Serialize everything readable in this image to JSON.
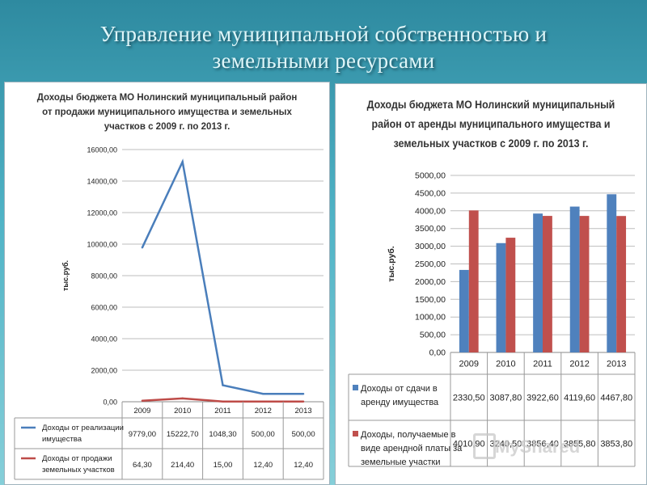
{
  "slide": {
    "title_lines": [
      "Управление муниципальной собственностью и",
      "земельными ресурсами"
    ],
    "watermark": "MyShared"
  },
  "chart_data": [
    {
      "type": "line",
      "title_lines": [
        "Доходы бюджета МО Нолинский муниципальный район",
        "от продажи муниципального имущества и земельных",
        "участков с 2009 г. по 2013 г."
      ],
      "ylabel": "тыс.руб.",
      "categories": [
        "2009",
        "2010",
        "2011",
        "2012",
        "2013"
      ],
      "ylim": [
        0,
        16000
      ],
      "yticks": [
        "0,00",
        "2000,00",
        "4000,00",
        "6000,00",
        "8000,00",
        "10000,00",
        "12000,00",
        "14000,00",
        "16000,00"
      ],
      "grid": true,
      "legend_placement": "bottom data table",
      "series": [
        {
          "name": "Доходы от реализации имущества",
          "name_lines": [
            "Доходы от реализации",
            "имущества"
          ],
          "color": "#4a7ebb",
          "values": [
            9779.0,
            15222.7,
            1048.3,
            500.0,
            500.0
          ],
          "labels": [
            "9779,00",
            "15222,70",
            "1048,30",
            "500,00",
            "500,00"
          ]
        },
        {
          "name": "Доходы от продажи земельных участков",
          "name_lines": [
            "Доходы от продажи",
            "земельных участков"
          ],
          "color": "#be4b48",
          "values": [
            64.3,
            214.4,
            15.0,
            12.4,
            12.4
          ],
          "labels": [
            "64,30",
            "214,40",
            "15,00",
            "12,40",
            "12,40"
          ]
        }
      ]
    },
    {
      "type": "bar",
      "title_lines": [
        "Доходы бюджета МО Нолинский муниципальный",
        "район от аренды муниципального имущества и",
        "земельных участков с 2009 г. по 2013 г."
      ],
      "ylabel": "тыс.руб.",
      "categories": [
        "2009",
        "2010",
        "2011",
        "2012",
        "2013"
      ],
      "ylim": [
        0,
        5000
      ],
      "yticks": [
        "0,00",
        "500,00",
        "1000,00",
        "1500,00",
        "2000,00",
        "2500,00",
        "3000,00",
        "3500,00",
        "4000,00",
        "4500,00",
        "5000,00"
      ],
      "grid": true,
      "legend_placement": "bottom data table",
      "series": [
        {
          "name": "Доходы от сдачи в аренду имущества",
          "name_lines": [
            "Доходы от сдачи в",
            "аренду имущества"
          ],
          "color": "#4f81bd",
          "values": [
            2330.5,
            3087.8,
            3922.6,
            4119.6,
            4467.8
          ],
          "labels": [
            "2330,50",
            "3087,80",
            "3922,60",
            "4119,60",
            "4467,80"
          ]
        },
        {
          "name": "Доходы, получаемые в виде арендной платы за земельные участки",
          "name_lines": [
            "Доходы, получаемые в",
            "виде арендной платы за",
            "земельные участки"
          ],
          "color": "#c0504d",
          "values": [
            4010.9,
            3240.5,
            3856.4,
            3855.8,
            3853.8
          ],
          "labels": [
            "4010,90",
            "3240,50",
            "3856,40",
            "3855,80",
            "3853,80"
          ]
        }
      ]
    }
  ]
}
